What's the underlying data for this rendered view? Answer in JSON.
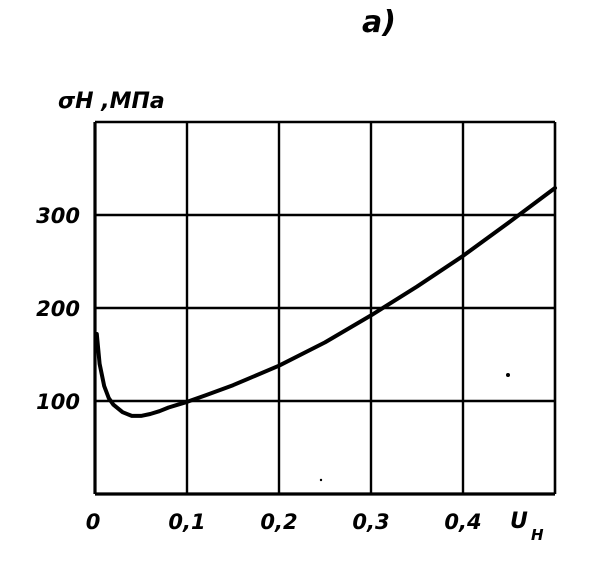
{
  "panel_label": "a)",
  "chart_data": {
    "type": "line",
    "ylabel": "σH ,МПа",
    "xlabel_main": "U",
    "xlabel_sub": "H",
    "xlim": [
      0,
      0.5
    ],
    "ylim": [
      0,
      400
    ],
    "x_ticks": [
      {
        "value": 0,
        "label": "0"
      },
      {
        "value": 0.1,
        "label": "0,1"
      },
      {
        "value": 0.2,
        "label": "0,2"
      },
      {
        "value": 0.3,
        "label": "0,3"
      },
      {
        "value": 0.4,
        "label": "0,4"
      }
    ],
    "y_ticks": [
      {
        "value": 100,
        "label": "100"
      },
      {
        "value": 200,
        "label": "200"
      },
      {
        "value": 300,
        "label": "300"
      }
    ],
    "grid": true,
    "series": [
      {
        "x": [
          0.002,
          0.005,
          0.01,
          0.015,
          0.02,
          0.03,
          0.04,
          0.05,
          0.06,
          0.07,
          0.08,
          0.09,
          0.1,
          0.12,
          0.15,
          0.2,
          0.25,
          0.3,
          0.35,
          0.4,
          0.45,
          0.5
        ],
        "y": [
          172,
          140,
          116,
          103,
          96,
          88,
          84,
          84,
          86,
          89,
          93,
          96,
          99,
          106,
          117,
          138,
          163,
          192,
          223,
          256,
          292,
          329
        ]
      }
    ],
    "colors": {
      "line": "#000000",
      "grid": "#000000"
    }
  }
}
